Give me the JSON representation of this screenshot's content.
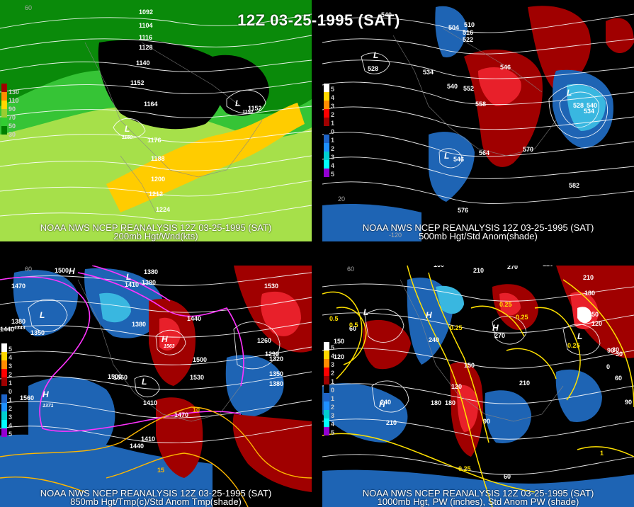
{
  "title": "12Z 03-25-1995 (SAT)",
  "panels": [
    {
      "id": "p200",
      "line1": "NOAA NWS NCEP REANALYSIS 12Z 03-25-1995 (SAT)",
      "line2": "200mb Hgt/Wnd(kts)",
      "legend": [
        "130",
        "110",
        "90",
        "70",
        "50",
        "30"
      ],
      "legend_colors": [
        "#a00000",
        "#ff8c00",
        "#ffd700",
        "#9acd32",
        "#32cd32",
        "#008000"
      ],
      "height_labels": [
        "1092",
        "1104",
        "1116",
        "1128",
        "1140",
        "1152",
        "1164",
        "1176",
        "1188",
        "1200",
        "1212",
        "1224",
        "1152",
        "1150",
        "1150"
      ],
      "lat_labels": [
        "60"
      ]
    },
    {
      "id": "p500",
      "line1": "NOAA NWS NCEP REANALYSIS 12Z 03-25-1995 (SAT)",
      "line2": "500mb Hgt/Std Anom(shade)",
      "legend": [
        "5",
        "4",
        "3",
        "2",
        "1",
        "0",
        "1",
        "2",
        "3",
        "4",
        "5"
      ],
      "legend_colors": [
        "#ffffff",
        "#ffd700",
        "#ff8c00",
        "#ff0000",
        "#a00000",
        "#000000",
        "#1e64c8",
        "#1e90ff",
        "#00ced1",
        "#00ffff",
        "#9400d3"
      ],
      "height_labels": [
        "540",
        "504",
        "510",
        "516",
        "522",
        "528",
        "534",
        "540",
        "546",
        "552",
        "558",
        "564",
        "570",
        "576",
        "582",
        "528",
        "534",
        "540",
        "546"
      ],
      "lat_labels": [
        "20",
        "-120"
      ]
    },
    {
      "id": "p850",
      "line1": "NOAA NWS NCEP REANALYSIS 12Z 03-25-1995 (SAT)",
      "line2": "850mb Hgt/Tmp(c)/Std Anom Tmp(shade)",
      "legend": [
        "5",
        "4",
        "3",
        "2",
        "1",
        "0",
        "1",
        "2",
        "3",
        "4",
        "5"
      ],
      "legend_colors": [
        "#ffffff",
        "#ffd700",
        "#ff8c00",
        "#ff0000",
        "#a00000",
        "#000000",
        "#1e64c8",
        "#1e90ff",
        "#00ced1",
        "#00ffff",
        "#9400d3"
      ],
      "height_labels": [
        "1500",
        "1470",
        "1380",
        "1380",
        "1410",
        "1440",
        "1350",
        "1380",
        "1560",
        "1530",
        "1440",
        "1470",
        "1500",
        "1530",
        "1500",
        "1410",
        "1440",
        "1560",
        "1410",
        "1380",
        "1260",
        "1290",
        "1320",
        "1350",
        "1380",
        "1563",
        "1371",
        "1343"
      ],
      "temp_labels": [
        "10",
        "15"
      ],
      "lat_labels": [
        "60"
      ]
    },
    {
      "id": "p1000",
      "line1": "NOAA NWS NCEP REANALYSIS 12Z 03-25-1995 (SAT)",
      "line2": "1000mb Hgt, PW (inches), Std Anom PW (shade)",
      "legend": [
        "5",
        "4",
        "3",
        "2",
        "1",
        "0",
        "1",
        "2",
        "3",
        "4",
        "5"
      ],
      "legend_colors": [
        "#ffffff",
        "#ffd700",
        "#ff8c00",
        "#ff0000",
        "#a00000",
        "#000000",
        "#1e64c8",
        "#1e90ff",
        "#00ced1",
        "#00ffff",
        "#9400d3"
      ],
      "height_labels": [
        "150",
        "210",
        "270",
        "120",
        "210",
        "180",
        "150",
        "120",
        "90",
        "60",
        "30",
        "0",
        "240",
        "210",
        "180",
        "150",
        "120",
        "90",
        "60",
        "240",
        "270",
        "210",
        "180",
        "150",
        "120",
        "90",
        "60",
        "30"
      ],
      "pw_labels": [
        "0.5",
        "0.25",
        "0.25",
        "0.25",
        "0.25",
        "0.25",
        "0.5",
        "1"
      ],
      "lat_labels": [
        "60"
      ]
    }
  ],
  "colors": {
    "green_dark": "#0a8a0a",
    "green_mid": "#36c436",
    "green_light": "#a6e04a",
    "yellow": "#ffcc00",
    "red_dark": "#a00000",
    "red": "#e8202a",
    "blue": "#1e64b4",
    "cyan": "#39b7e0",
    "magenta": "#ff33ff",
    "contour_yellow": "#ffe100"
  }
}
